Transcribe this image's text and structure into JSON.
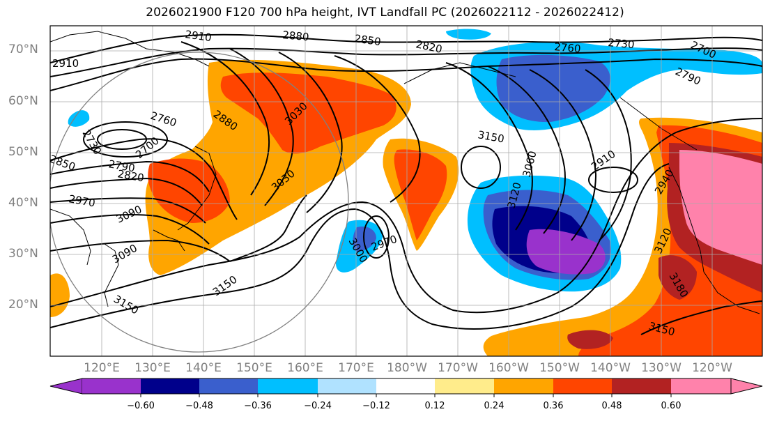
{
  "title": "2026021900 F120 700 hPa height, IVT Landfall PC (2026022112 - 2026022412)",
  "latitude_labels": [
    "70°N",
    "60°N",
    "50°N",
    "40°N",
    "30°N",
    "20°N"
  ],
  "longitude_labels": [
    "120°E",
    "130°E",
    "140°E",
    "150°E",
    "160°E",
    "170°E",
    "180°W",
    "170°W",
    "160°W",
    "150°W",
    "140°W",
    "130°W",
    "120°W"
  ],
  "contour_labels": [
    {
      "text": "2910",
      "id": "c1"
    },
    {
      "text": "2880",
      "id": "c2"
    },
    {
      "text": "2850",
      "id": "c3"
    },
    {
      "text": "2820",
      "id": "c4"
    },
    {
      "text": "2760",
      "id": "c5"
    },
    {
      "text": "2730",
      "id": "c6"
    },
    {
      "text": "2700",
      "id": "c7"
    },
    {
      "text": "2790",
      "id": "c8"
    },
    {
      "text": "2910",
      "id": "c9"
    },
    {
      "text": "2760",
      "id": "c10"
    },
    {
      "text": "2880",
      "id": "c11"
    },
    {
      "text": "2730",
      "id": "c12"
    },
    {
      "text": "2700",
      "id": "c13"
    },
    {
      "text": "2850",
      "id": "c14"
    },
    {
      "text": "2790",
      "id": "c15"
    },
    {
      "text": "2820",
      "id": "c16"
    },
    {
      "text": "2970",
      "id": "c17"
    },
    {
      "text": "3090",
      "id": "c18"
    },
    {
      "text": "3090",
      "id": "c19"
    },
    {
      "text": "3030",
      "id": "c20"
    },
    {
      "text": "3030",
      "id": "c21"
    },
    {
      "text": "3150",
      "id": "c22"
    },
    {
      "text": "3150",
      "id": "c23"
    },
    {
      "text": "3000",
      "id": "c24"
    },
    {
      "text": "2970",
      "id": "c25"
    },
    {
      "text": "3150",
      "id": "c26"
    },
    {
      "text": "3060",
      "id": "c27"
    },
    {
      "text": "3120",
      "id": "c28"
    },
    {
      "text": "2910",
      "id": "c29"
    },
    {
      "text": "2940",
      "id": "c30"
    },
    {
      "text": "3120",
      "id": "c31"
    },
    {
      "text": "3180",
      "id": "c32"
    },
    {
      "text": "3150",
      "id": "c33"
    }
  ],
  "colorbar": {
    "ticks": [
      "−0.60",
      "−0.48",
      "−0.36",
      "−0.24",
      "−0.12",
      "0.12",
      "0.24",
      "0.36",
      "0.48",
      "0.60"
    ],
    "colors": [
      "#9932CC",
      "#00008B",
      "#3A5FCD",
      "#00BFFF",
      "#B0E2FF",
      "#FFFFFF",
      "#FFEC8B",
      "#FFA500",
      "#FF4500",
      "#B22222",
      "#FF82AB"
    ]
  },
  "legend_colors": {
    "neg060": "#9932CC",
    "neg048": "#00008B",
    "neg036": "#3A5FCD",
    "neg024": "#00BFFF",
    "neg012": "#B0E2FF",
    "pos024": "#FFA500",
    "pos036": "#FF4500",
    "pos048": "#B22222",
    "pos060": "#FF82AB"
  }
}
